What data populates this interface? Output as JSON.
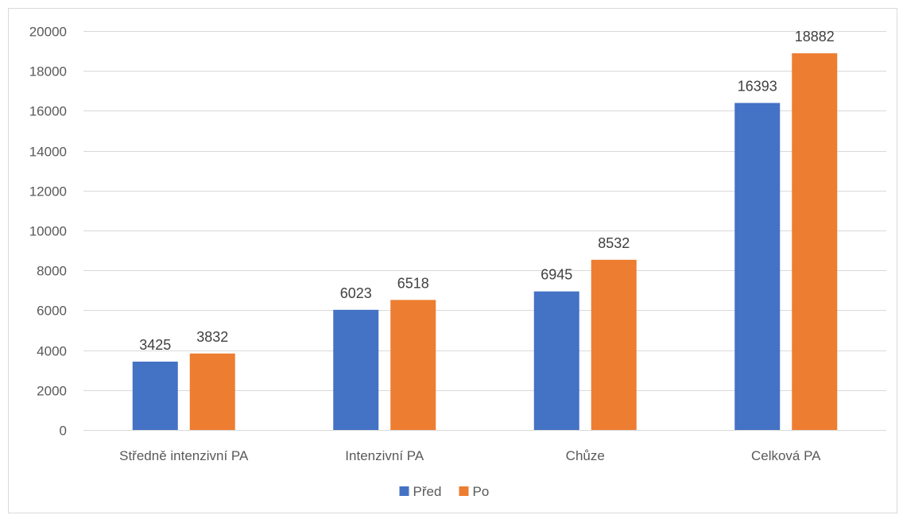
{
  "chart_data": {
    "type": "bar",
    "categories": [
      "Středně intenzivní PA",
      "Intenzivní PA",
      "Chůze",
      "Celková PA"
    ],
    "series": [
      {
        "name": "Před",
        "values": [
          3425,
          6023,
          6945,
          16393
        ],
        "color": "#4472c4"
      },
      {
        "name": "Po",
        "values": [
          3832,
          6518,
          8532,
          18882
        ],
        "color": "#ed7d31"
      }
    ],
    "title": "",
    "xlabel": "",
    "ylabel": "",
    "ylim": [
      0,
      20000
    ],
    "yticks": [
      0,
      2000,
      4000,
      6000,
      8000,
      10000,
      12000,
      14000,
      16000,
      18000,
      20000
    ],
    "grid": true,
    "data_labels": true,
    "legend_position": "bottom",
    "gridline_color": "#d9d9d9",
    "border_color": "#d9d9d9"
  }
}
